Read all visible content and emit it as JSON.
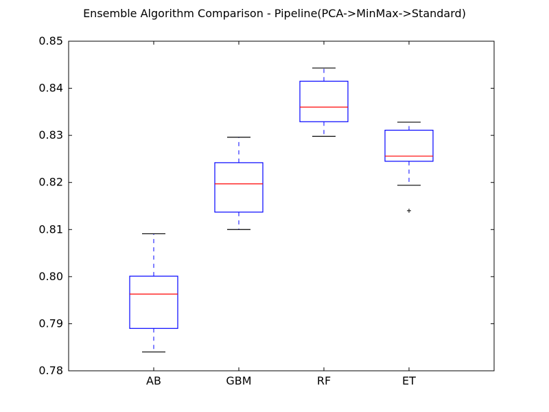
{
  "chart_data": {
    "type": "box",
    "title": "Ensemble Algorithm Comparison - Pipeline(PCA->MinMax->Standard)",
    "xlabel": "",
    "ylabel": "",
    "ylim": [
      0.78,
      0.85
    ],
    "yticks": [
      0.78,
      0.79,
      0.8,
      0.81,
      0.82,
      0.83,
      0.84,
      0.85
    ],
    "ytick_labels": [
      "0.78",
      "0.79",
      "0.80",
      "0.81",
      "0.82",
      "0.83",
      "0.84",
      "0.85"
    ],
    "categories": [
      "AB",
      "GBM",
      "RF",
      "ET"
    ],
    "boxes": [
      {
        "label": "AB",
        "whisker_low": 0.784,
        "q1": 0.789,
        "median": 0.7963,
        "q3": 0.8001,
        "whisker_high": 0.8091,
        "fliers": []
      },
      {
        "label": "GBM",
        "whisker_low": 0.81,
        "q1": 0.8137,
        "median": 0.8197,
        "q3": 0.8242,
        "whisker_high": 0.8296,
        "fliers": []
      },
      {
        "label": "RF",
        "whisker_low": 0.8298,
        "q1": 0.8329,
        "median": 0.836,
        "q3": 0.8415,
        "whisker_high": 0.8443,
        "fliers": []
      },
      {
        "label": "ET",
        "whisker_low": 0.8194,
        "q1": 0.8245,
        "median": 0.8256,
        "q3": 0.8311,
        "whisker_high": 0.8328,
        "fliers": [
          0.814
        ]
      }
    ],
    "grid": false,
    "colors": {
      "box": "#0000ff",
      "median": "#ff0000",
      "cap": "#000000",
      "flier": "#000000",
      "axis": "#000000"
    }
  }
}
